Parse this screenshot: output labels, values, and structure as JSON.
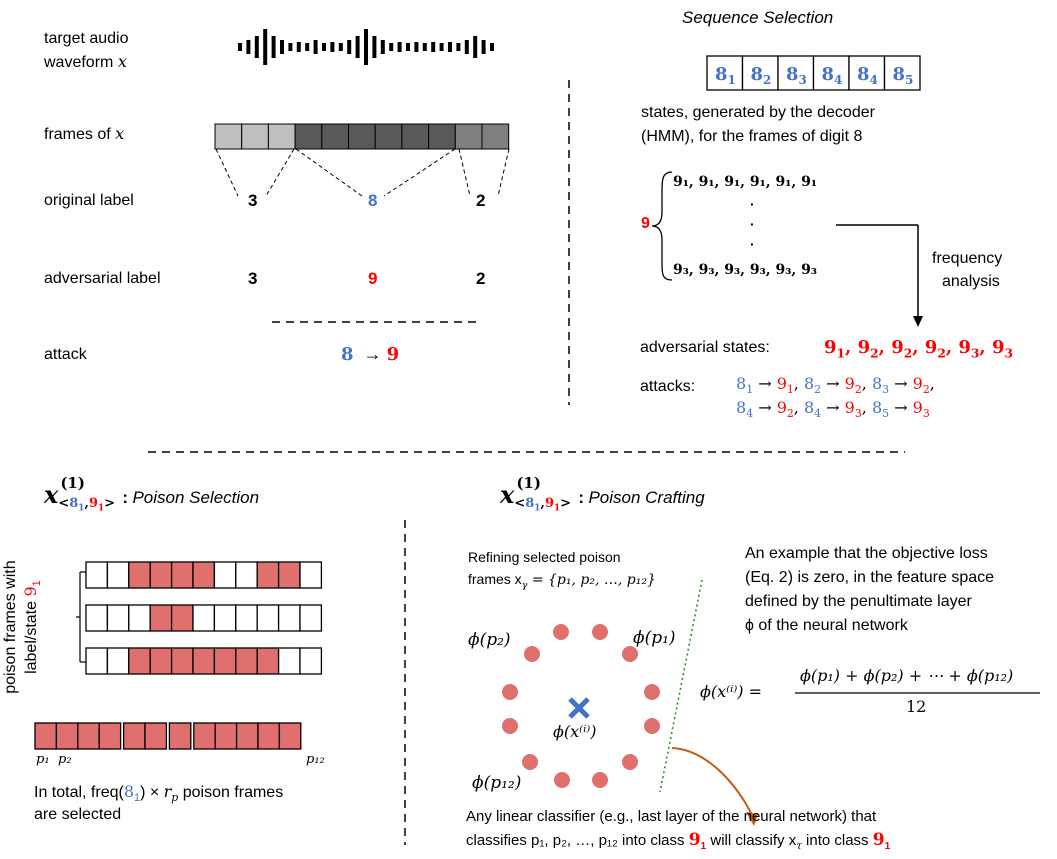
{
  "colors": {
    "blue": "#4472C4",
    "red": "#FF0000",
    "salmon": "#E0706E",
    "arrow_orange": "#C55A11",
    "divider_green": "#2E8B2E",
    "frame_light": "#BFBFBF",
    "frame_dark": "#595959",
    "frame_mid": "#7F7F7F"
  },
  "top_left": {
    "target_audio_label": "target audio",
    "waveform_label": "waveform",
    "waveform_var": "x",
    "frames_label": "frames of",
    "frames_var": "x",
    "original_label": "original label",
    "original_values": [
      "3",
      "8",
      "2"
    ],
    "adversarial_label": "adversarial label",
    "adversarial_values": [
      "3",
      "9",
      "2"
    ],
    "attack_label": "attack",
    "attack_from": "8",
    "attack_arrow": "→",
    "attack_to": "9"
  },
  "sequence_selection": {
    "title": "Sequence Selection",
    "states": [
      {
        "base": "8",
        "sub": "1"
      },
      {
        "base": "8",
        "sub": "2"
      },
      {
        "base": "8",
        "sub": "3"
      },
      {
        "base": "8",
        "sub": "4"
      },
      {
        "base": "8",
        "sub": "4"
      },
      {
        "base": "8",
        "sub": "5"
      }
    ],
    "desc_line1": "states, generated by the decoder",
    "desc_line2": "(HMM), for the frames of digit 8",
    "brace_digit": "9",
    "row1": "9₁, 9₁, 9₁, 9₁, 9₁, 9₁",
    "dots": "·",
    "row3": "9₃, 9₃, 9₃, 9₃, 9₃, 9₃",
    "freq_line1": "frequency",
    "freq_line2": "analysis",
    "adv_states_label": "adversarial states:",
    "adv_states": [
      {
        "base": "9",
        "sub": "1"
      },
      {
        "base": "9",
        "sub": "2"
      },
      {
        "base": "9",
        "sub": "2"
      },
      {
        "base": "9",
        "sub": "2"
      },
      {
        "base": "9",
        "sub": "3"
      },
      {
        "base": "9",
        "sub": "3"
      }
    ],
    "attacks_label": "attacks:",
    "attacks_line1": [
      {
        "from": "1",
        "to": "1"
      },
      {
        "from": "2",
        "to": "2"
      },
      {
        "from": "3",
        "to": "2"
      }
    ],
    "attacks_line2": [
      {
        "from": "4",
        "to": "2"
      },
      {
        "from": "4",
        "to": "3"
      },
      {
        "from": "5",
        "to": "3"
      }
    ]
  },
  "poison_selection": {
    "title_var": "x",
    "title_sup": "(1)",
    "title_sub_a": "8",
    "title_sub_a_idx": "1",
    "title_sub_b": "9",
    "title_sub_b_idx": "1",
    "title_colon": ":",
    "title": "Poison Selection",
    "vertical_label_line1": "poison frames with",
    "vertical_label_line2": "label/state",
    "vertical_label_state": "9",
    "vertical_label_state_sub": "1",
    "rows": [
      [
        0,
        0,
        1,
        1,
        1,
        1,
        0,
        0,
        1,
        1,
        0
      ],
      [
        0,
        0,
        0,
        1,
        1,
        0,
        0,
        0,
        0,
        0,
        0
      ],
      [
        0,
        0,
        1,
        1,
        1,
        1,
        1,
        1,
        1,
        0,
        0
      ]
    ],
    "p1_label": "p₁",
    "p2_label": "p₂",
    "p12_label": "p₁₂",
    "total_text_a": "In total, freq(",
    "total_state": "8",
    "total_state_sub": "1",
    "total_text_b": ") × ",
    "total_rp": "r",
    "total_rp_sub": "p",
    "total_text_c": " poison frames",
    "total_line2": "are selected"
  },
  "poison_crafting": {
    "title": "Poison Crafting",
    "title_colon": ":",
    "refine_line1": "Refining selected poison",
    "refine_line2": "frames x",
    "refine_sub": "γ",
    "refine_set": " = {p₁, p₂, …, p₁₂}",
    "example_line1": "An example that the objective loss",
    "example_line2": "(Eq. 2) is zero, in the feature space",
    "example_line3": "defined by the  penultimate layer",
    "example_line4": "ϕ of the neural network",
    "phi_p1": "ϕ(p₁)",
    "phi_p2": "ϕ(p₂)",
    "phi_p12": "ϕ(p₁₂)",
    "phi_xi": "ϕ(x⁽ⁱ⁾)",
    "eq_lhs": "ϕ(x⁽ⁱ⁾) =",
    "eq_num": "ϕ(p₁) + ϕ(p₂) + ⋯ + ϕ(p₁₂)",
    "eq_den": "12",
    "footer_line1": "Any linear classifier (e.g., last layer of the neural network) that",
    "footer_line2_a": "classifies p₁, p₂, …, p₁₂ into class ",
    "footer_class": "9",
    "footer_class_sub": "1",
    "footer_line2_b": " will classify x",
    "footer_tau": "τ",
    "footer_line2_c": " into class "
  }
}
